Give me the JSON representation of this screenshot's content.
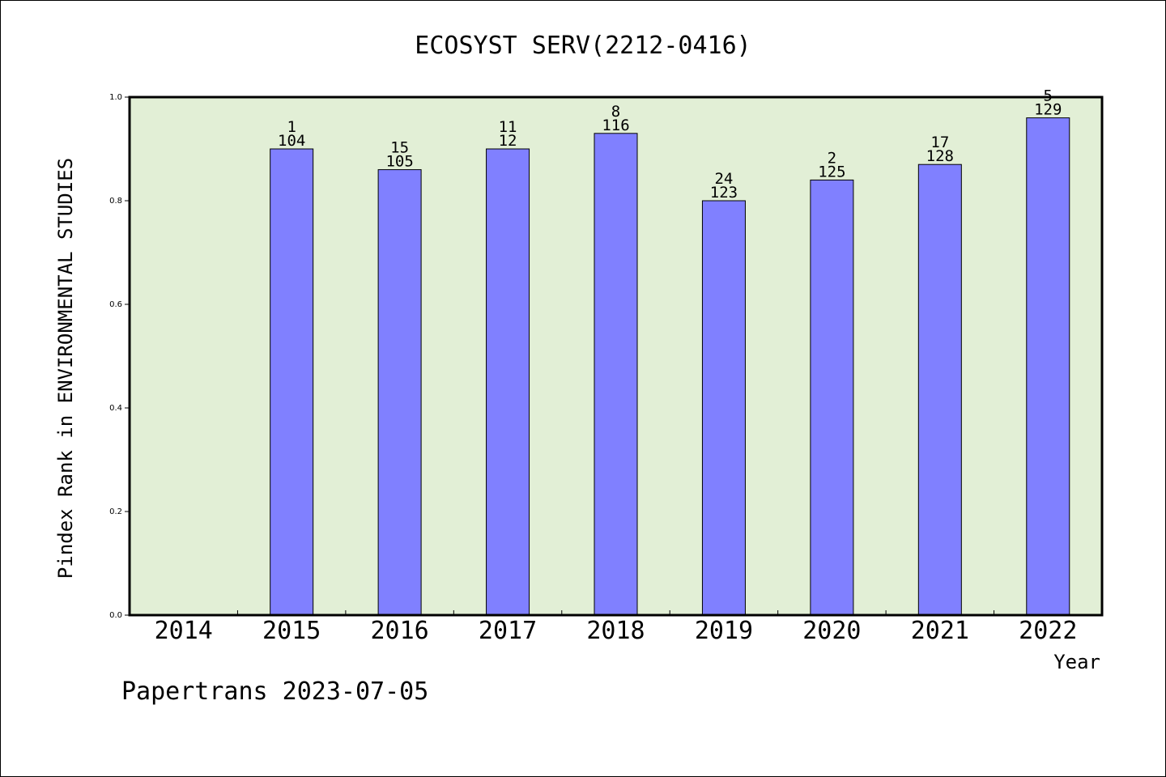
{
  "chart_data": {
    "type": "bar",
    "title": "ECOSYST SERV(2212-0416)",
    "xlabel": "Year",
    "ylabel": "Pindex Rank in ENVIRONMENTAL STUDIES",
    "ylim": [
      0.0,
      1.0
    ],
    "yticks": [
      "0.0",
      "0.2",
      "0.4",
      "0.6",
      "0.8",
      "1.0"
    ],
    "categories": [
      "2014",
      "2015",
      "2016",
      "2017",
      "2018",
      "2019",
      "2020",
      "2021",
      "2022"
    ],
    "values": [
      null,
      0.9,
      0.86,
      0.9,
      0.93,
      0.8,
      0.84,
      0.87,
      0.96
    ],
    "labels_rank": [
      "",
      "1",
      "15",
      "11",
      "8",
      "24",
      "2",
      "17",
      "5"
    ],
    "labels_total": [
      "",
      "104",
      "105",
      "12",
      "116",
      "123",
      "125",
      "128",
      "129"
    ],
    "grid": false,
    "legend": "none",
    "colors": {
      "bar": "#8080ff",
      "plot_background": "#e2efd6",
      "axis": "#000000"
    }
  },
  "footer": {
    "text": "Papertrans 2023-07-05"
  }
}
